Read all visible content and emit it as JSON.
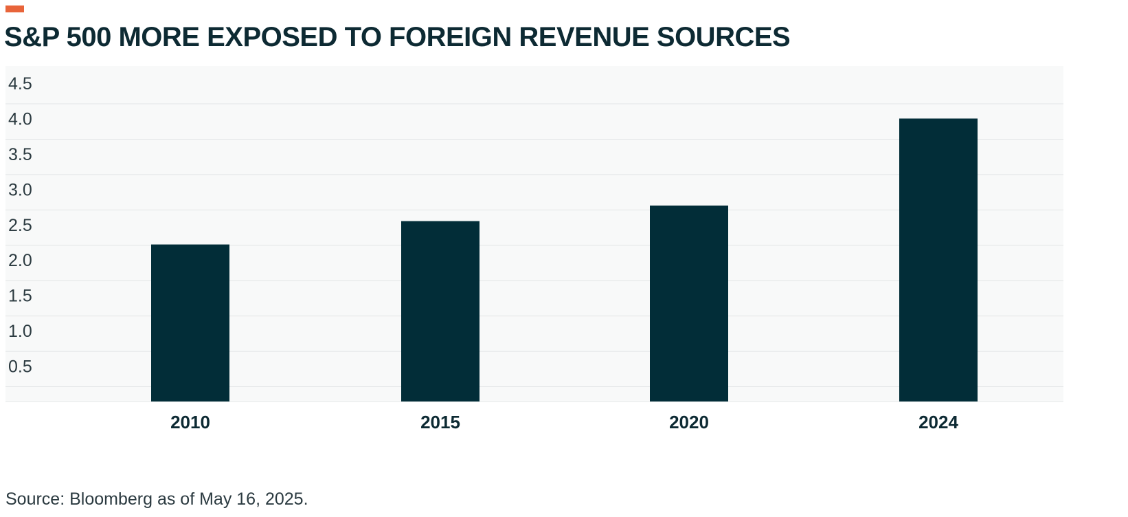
{
  "title": "S&P 500 MORE EXPOSED TO FOREIGN REVENUE SOURCES",
  "source": "Source: Bloomberg as of May 16, 2025.",
  "colors": {
    "accent": "#e8643a",
    "bar": "#022d38",
    "title": "#0d2a33",
    "plot_background": "#f8f9f9",
    "grid": "#e2e5e6"
  },
  "chart_data": {
    "type": "bar",
    "title": "S&P 500 MORE EXPOSED TO FOREIGN REVENUE SOURCES",
    "categories": [
      "2010",
      "2015",
      "2020",
      "2024"
    ],
    "values": [
      2.22,
      2.55,
      2.77,
      4.0
    ],
    "ylim": [
      0,
      4.5
    ],
    "yticks": [
      "0.5",
      "1.0",
      "1.5",
      "2.0",
      "2.5",
      "3.0",
      "3.5",
      "4.0",
      "4.5"
    ],
    "xlabel": "",
    "ylabel": "",
    "grid": true,
    "legend": "none"
  }
}
